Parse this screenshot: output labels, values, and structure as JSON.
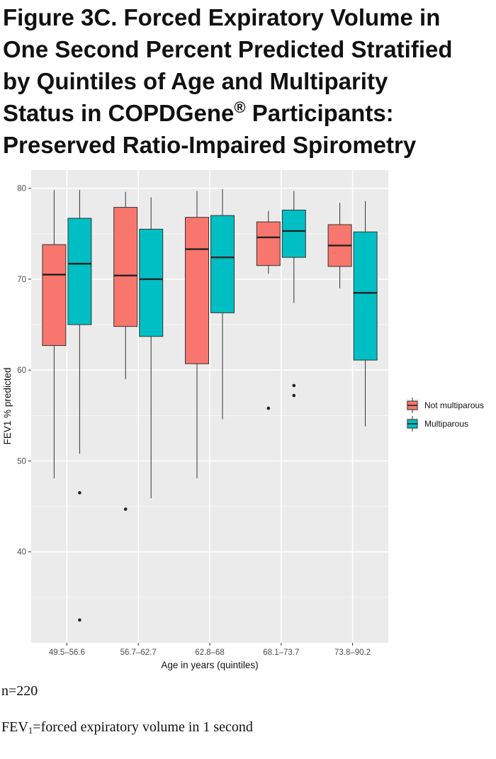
{
  "figure": {
    "title_lines": [
      "Figure 3C. Forced Expiratory Volume in",
      "One Second Percent Predicted Stratified",
      "by Quintiles of Age and Multiparity",
      "Status in COPDGene",
      "®",
      " Participants:",
      "Preserved Ratio-Impaired Spirometry"
    ]
  },
  "notes": {
    "n": "n=220",
    "def_prefix": "FEV",
    "def_sub": "1",
    "def_rest": "=forced expiratory volume in 1 second"
  },
  "chart_data": {
    "type": "boxplot",
    "xlabel": "Age in years (quintiles)",
    "ylabel": "FEV1 % predicted",
    "ylim": [
      30,
      82
    ],
    "yticks": [
      40,
      50,
      60,
      70,
      80
    ],
    "grid": true,
    "legend_position": "right",
    "categories": [
      "49.5–56.6",
      "56.7–62.7",
      "62.8–68",
      "68.1–73.7",
      "73.8–90.2"
    ],
    "series": [
      {
        "name": "Not multiparous",
        "color": "#F8766D",
        "boxes": [
          {
            "min": 48.1,
            "q1": 62.7,
            "median": 70.5,
            "q3": 73.8,
            "max": 79.8,
            "outliers": []
          },
          {
            "min": 59.0,
            "q1": 64.8,
            "median": 70.4,
            "q3": 77.9,
            "max": 79.6,
            "outliers": [
              44.7
            ]
          },
          {
            "min": 48.1,
            "q1": 60.7,
            "median": 73.3,
            "q3": 76.8,
            "max": 79.7,
            "outliers": []
          },
          {
            "min": 70.6,
            "q1": 71.5,
            "median": 74.6,
            "q3": 76.3,
            "max": 77.5,
            "outliers": [
              55.8
            ]
          },
          {
            "min": 69.0,
            "q1": 71.4,
            "median": 73.7,
            "q3": 76.0,
            "max": 78.4,
            "outliers": []
          }
        ]
      },
      {
        "name": "Multiparous",
        "color": "#00BFC4",
        "boxes": [
          {
            "min": 50.8,
            "q1": 65.0,
            "median": 71.7,
            "q3": 76.7,
            "max": 79.8,
            "outliers": [
              46.5,
              32.5
            ]
          },
          {
            "min": 45.9,
            "q1": 63.7,
            "median": 70.0,
            "q3": 75.5,
            "max": 79.0,
            "outliers": []
          },
          {
            "min": 54.6,
            "q1": 66.3,
            "median": 72.4,
            "q3": 77.0,
            "max": 79.9,
            "outliers": []
          },
          {
            "min": 67.4,
            "q1": 72.4,
            "median": 75.3,
            "q3": 77.6,
            "max": 79.7,
            "outliers": [
              58.3,
              57.2
            ]
          },
          {
            "min": 53.8,
            "q1": 61.1,
            "median": 68.5,
            "q3": 75.2,
            "max": 78.6,
            "outliers": []
          }
        ]
      }
    ]
  }
}
